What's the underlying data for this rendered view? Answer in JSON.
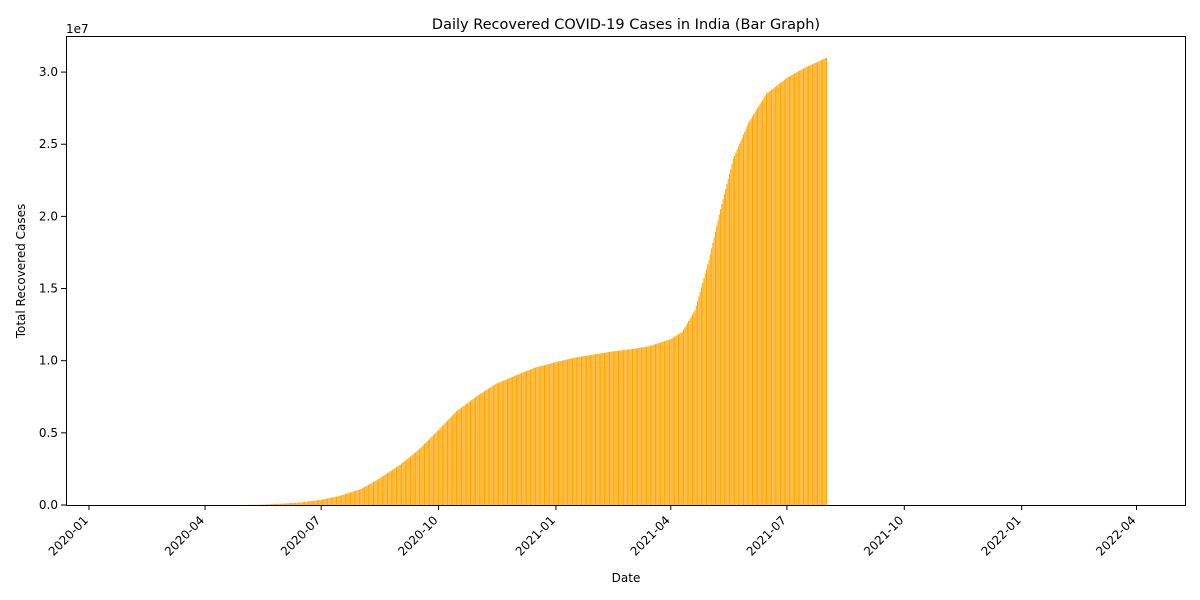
{
  "chart_data": {
    "type": "bar",
    "title": "Daily Recovered COVID-19 Cases in India (Bar Graph)",
    "xlabel": "Date",
    "ylabel": "Total Recovered Cases",
    "y_offset_text": "1e7",
    "ylim": [
      0,
      32500000
    ],
    "xlim": [
      "2019-12-14",
      "2022-05-09"
    ],
    "bar_color": "#ffa500",
    "grid": false,
    "legend": "none",
    "x_ticks": [
      "2020-01",
      "2020-04",
      "2020-07",
      "2020-10",
      "2021-01",
      "2021-04",
      "2021-07",
      "2021-10",
      "2022-01",
      "2022-04"
    ],
    "y_ticks": [
      "0.0",
      "0.5",
      "1.0",
      "1.5",
      "2.0",
      "2.5",
      "3.0"
    ],
    "data_start": "2020-01-30",
    "data_end": "2021-08-01",
    "anchors": [
      [
        "2020-01-30",
        0
      ],
      [
        "2020-05-01",
        0
      ],
      [
        "2020-05-15",
        20000
      ],
      [
        "2020-06-01",
        100000
      ],
      [
        "2020-06-15",
        180000
      ],
      [
        "2020-07-01",
        360000
      ],
      [
        "2020-07-15",
        620000
      ],
      [
        "2020-08-01",
        1100000
      ],
      [
        "2020-08-15",
        1800000
      ],
      [
        "2020-09-01",
        2800000
      ],
      [
        "2020-09-15",
        3800000
      ],
      [
        "2020-10-01",
        5200000
      ],
      [
        "2020-10-15",
        6500000
      ],
      [
        "2020-11-01",
        7600000
      ],
      [
        "2020-11-15",
        8400000
      ],
      [
        "2020-12-01",
        9000000
      ],
      [
        "2020-12-15",
        9500000
      ],
      [
        "2021-01-01",
        9900000
      ],
      [
        "2021-01-15",
        10200000
      ],
      [
        "2021-02-01",
        10450000
      ],
      [
        "2021-02-15",
        10650000
      ],
      [
        "2021-03-01",
        10800000
      ],
      [
        "2021-03-15",
        11000000
      ],
      [
        "2021-04-01",
        11500000
      ],
      [
        "2021-04-10",
        12000000
      ],
      [
        "2021-04-20",
        13500000
      ],
      [
        "2021-05-01",
        17000000
      ],
      [
        "2021-05-10",
        20500000
      ],
      [
        "2021-05-20",
        24000000
      ],
      [
        "2021-06-01",
        26500000
      ],
      [
        "2021-06-15",
        28500000
      ],
      [
        "2021-07-01",
        29600000
      ],
      [
        "2021-07-15",
        30300000
      ],
      [
        "2021-08-01",
        31000000
      ]
    ]
  }
}
